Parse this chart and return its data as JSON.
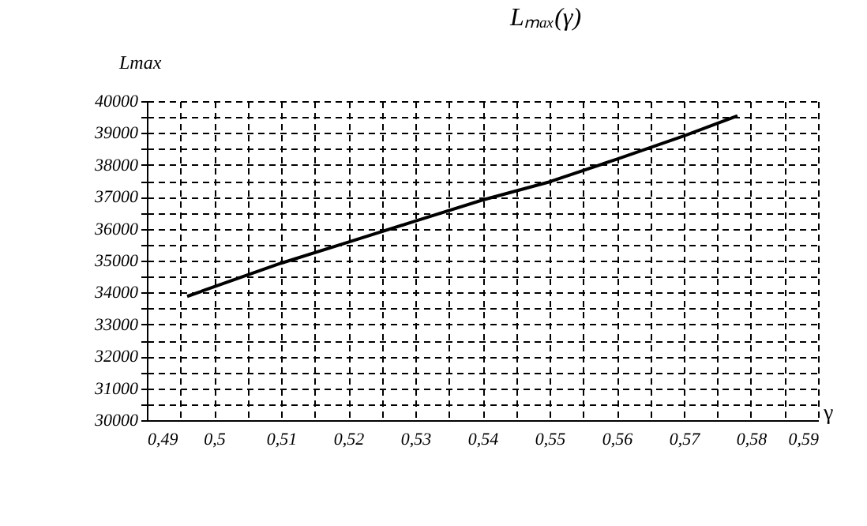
{
  "chart_data": {
    "type": "line",
    "title": "Lₘₐₓ(γ)",
    "ylabel": "Lmax",
    "xlabel": "γ",
    "x": [
      0.496,
      0.51,
      0.52,
      0.53,
      0.54,
      0.55,
      0.56,
      0.57,
      0.578
    ],
    "series": [
      {
        "color": "#000000",
        "values": [
          33880,
          34920,
          35580,
          36240,
          36900,
          37470,
          38180,
          38910,
          39540
        ]
      }
    ],
    "xlim": [
      0.49,
      0.59
    ],
    "xticks": [
      {
        "value": 0.49,
        "label": "0,49"
      },
      {
        "value": 0.495,
        "label": null
      },
      {
        "value": 0.5,
        "label": "0,5"
      },
      {
        "value": 0.505,
        "label": null
      },
      {
        "value": 0.51,
        "label": "0,51"
      },
      {
        "value": 0.515,
        "label": null
      },
      {
        "value": 0.52,
        "label": "0,52"
      },
      {
        "value": 0.525,
        "label": null
      },
      {
        "value": 0.53,
        "label": "0,53"
      },
      {
        "value": 0.535,
        "label": null
      },
      {
        "value": 0.54,
        "label": "0,54"
      },
      {
        "value": 0.545,
        "label": null
      },
      {
        "value": 0.55,
        "label": "0,55"
      },
      {
        "value": 0.555,
        "label": null
      },
      {
        "value": 0.56,
        "label": "0,56"
      },
      {
        "value": 0.565,
        "label": null
      },
      {
        "value": 0.57,
        "label": "0,57"
      },
      {
        "value": 0.575,
        "label": null
      },
      {
        "value": 0.58,
        "label": "0,58"
      },
      {
        "value": 0.585,
        "label": null
      },
      {
        "value": 0.59,
        "label": "0,59"
      }
    ],
    "ylim": [
      30000,
      40000
    ],
    "yticks": [
      30000,
      {
        "value": 30500,
        "label": null
      },
      31000,
      {
        "value": 31500,
        "label": null
      },
      32000,
      {
        "value": 32500,
        "label": null
      },
      33000,
      {
        "value": 33500,
        "label": null
      },
      34000,
      {
        "value": 34500,
        "label": null
      },
      35000,
      {
        "value": 35500,
        "label": null
      },
      36000,
      {
        "value": 36500,
        "label": null
      },
      37000,
      {
        "value": 37500,
        "label": null
      },
      38000,
      {
        "value": 38500,
        "label": null
      },
      39000,
      {
        "value": 39500,
        "label": null
      },
      40000
    ],
    "grid": true,
    "line_style": "solid",
    "marker": "none"
  }
}
